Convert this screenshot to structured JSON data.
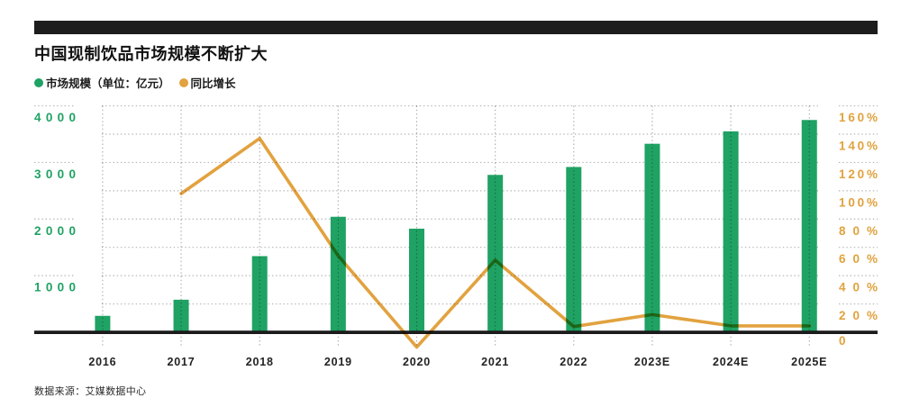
{
  "footer": {
    "source": "数据来源：艾媒数据中心"
  },
  "chart_data": {
    "type": "bar+line combo, dual axis",
    "title": "中国现制饮品市场规模不断扩大",
    "categories": [
      "2016",
      "2017",
      "2018",
      "2019",
      "2020",
      "2021",
      "2022",
      "2023E",
      "2024E",
      "2025E"
    ],
    "series": [
      {
        "name": "市场规模（单位：亿元）",
        "type": "bar",
        "axis": "left",
        "color": "#1fa263",
        "values": [
          290,
          575,
          1345,
          2040,
          1830,
          2780,
          2920,
          3330,
          3550,
          3750
        ]
      },
      {
        "name": "同比增长",
        "type": "line",
        "axis": "right",
        "color": "#e2a23f",
        "values": [
          null,
          98,
          137,
          54,
          -10.5,
          51,
          4,
          12.5,
          4.5,
          4.5
        ]
      }
    ],
    "left_axis": {
      "min": 0,
      "max": 4000,
      "grid_step": 500,
      "tick_labels": [
        "1000",
        "2000",
        "3000",
        "4000"
      ],
      "color": "#1fa263"
    },
    "right_axis": {
      "min": 0,
      "max": 160,
      "grid_step": 20,
      "tick_labels": [
        "0",
        "20%",
        "40%",
        "60%",
        "80%",
        "100%",
        "120%",
        "140%",
        "160%"
      ],
      "unit": "%",
      "color": "#e0a23e"
    },
    "grid": "dotted, horizontal every 500 / 20%, vertical at each category",
    "legend_position": "top-left"
  }
}
